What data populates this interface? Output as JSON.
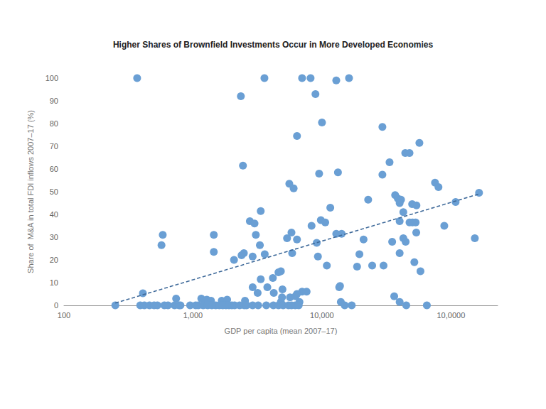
{
  "chart_data": {
    "type": "scatter",
    "title": "Higher Shares of Brownfield Investments Occur in More Developed Economies",
    "x_label": "GDP per capita (mean 2007–17)",
    "y_label": "Share of  M&A in total FDI inflows 2007–17 (%)",
    "log": "x",
    "grid": false,
    "xlim": [
      100,
      230000
    ],
    "xticks": [
      100,
      {
        "value": 1000,
        "label": "1,000"
      },
      {
        "value": 10000,
        "label": "10,000"
      },
      {
        "value": 100000,
        "label": "10,0000"
      }
    ],
    "ylim": [
      0,
      100
    ],
    "yticks": [
      0,
      10,
      20,
      30,
      40,
      50,
      60,
      70,
      80,
      90,
      100
    ],
    "series": [
      {
        "type": "scatter",
        "marker": "circle",
        "color": "#6a9fd4",
        "x": [
          369,
          3580,
          7010,
          8160,
          12900,
          16200,
          2350,
          8900,
          10000,
          29400,
          6400,
          56900,
          44200,
          47700,
          33400,
          2440,
          29400,
          9500,
          13300,
          5580,
          6030,
          75200,
          80000,
          22800,
          36900,
          38700,
          41000,
          40000,
          50000,
          54000,
          42700,
          11600,
          108600,
          165000,
          3350,
          2760,
          3000,
          9800,
          10600,
          8300,
          88700,
          47700,
          50300,
          53200,
          40000,
          3070,
          5800,
          12900,
          14200,
          42700,
          53800,
          153000,
          583,
          1450,
          3300,
          570,
          1450,
          2480,
          2380,
          3600,
          2900,
          5870,
          9300,
          40000,
          19500,
          6400,
          9100,
          5360,
          21000,
          35000,
          44500,
          2080,
          10900,
          18700,
          24500,
          30000,
          52000,
          58000,
          4800,
          4600,
          3350,
          4160,
          2900,
          3770,
          3170,
          4230,
          4940,
          7010,
          7600,
          6400,
          13600,
          13800,
          409,
          36300,
          40000,
          14000,
          740,
          1160,
          1280,
          1380,
          1670,
          1840,
          2530,
          4800,
          5650,
          6230,
          6690,
          4900,
          250,
          390,
          420,
          460,
          500,
          530,
          600,
          640,
          720,
          780,
          800,
          950,
          1050,
          1100,
          1200,
          1300,
          1400,
          1500,
          1600,
          1700,
          1800,
          1900,
          2000,
          2100,
          2300,
          2500,
          2600,
          2900,
          3200,
          3700,
          4200,
          4600,
          5000,
          5500,
          5800,
          6200,
          6600,
          15000,
          17000,
          45000,
          65000
        ],
        "values": [
          100,
          100,
          100,
          100,
          99,
          100,
          92,
          93,
          80.5,
          78.5,
          74.5,
          71.5,
          67,
          67,
          63,
          61.5,
          57.5,
          58,
          58.5,
          53.5,
          51.5,
          54,
          52,
          46.5,
          48.5,
          47,
          46.5,
          45,
          44.5,
          44,
          41,
          43,
          45.5,
          49.5,
          41.5,
          37,
          36,
          37.5,
          36.5,
          35,
          35,
          36.5,
          36.5,
          36.5,
          37,
          31,
          32,
          31.5,
          31.5,
          29.5,
          32,
          29.5,
          31,
          31,
          26.5,
          26.5,
          23.5,
          23,
          22,
          22.5,
          21.5,
          23,
          21.5,
          23,
          22.5,
          29,
          27.5,
          29.5,
          29,
          28,
          28,
          20,
          17.5,
          17,
          17.5,
          17.5,
          19,
          15,
          15,
          14.5,
          11.5,
          12,
          8,
          8,
          5.5,
          5.5,
          7,
          6,
          6,
          5,
          8,
          8.5,
          5.3,
          4,
          1.5,
          1.5,
          3,
          3,
          2.5,
          2,
          2,
          2.5,
          2,
          1.5,
          3.5,
          4,
          1.5,
          3.5,
          0,
          0,
          0,
          0,
          0,
          0,
          0,
          0,
          0,
          0,
          0,
          0,
          0,
          0,
          0,
          0,
          0,
          0,
          0,
          0,
          0,
          0,
          0,
          0,
          0,
          0,
          0,
          0,
          0,
          0,
          0,
          0,
          0,
          0,
          0,
          0,
          0,
          0,
          0,
          0,
          0
        ]
      },
      {
        "type": "line",
        "line_style": "dashed",
        "color": "#3f6a9a",
        "x": [
          250,
          165000
        ],
        "values": [
          1,
          49
        ]
      }
    ]
  }
}
